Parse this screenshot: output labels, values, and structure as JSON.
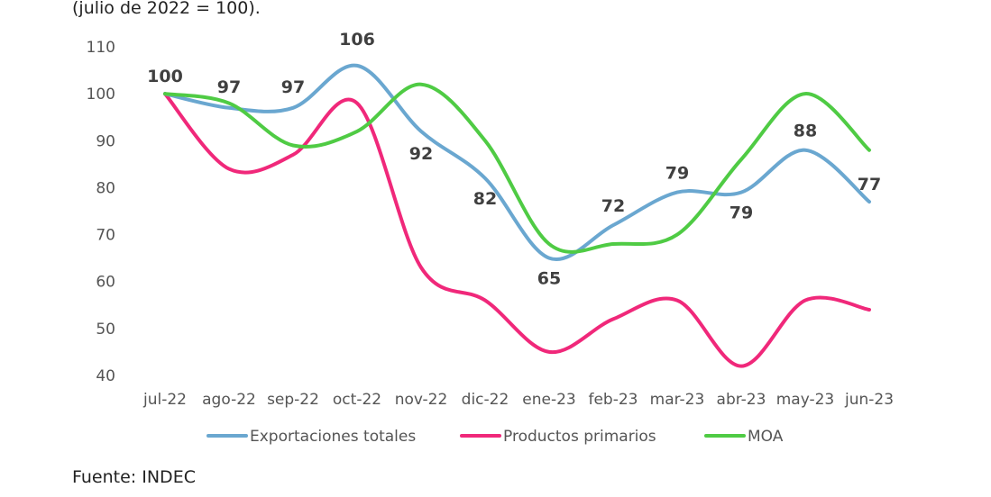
{
  "subtitle": "(julio de 2022 = 100).",
  "source": "Fuente: INDEC",
  "chart_data": {
    "type": "line",
    "title": "",
    "xlabel": "",
    "ylabel": "",
    "categories": [
      "jul-22",
      "ago-22",
      "sep-22",
      "oct-22",
      "nov-22",
      "dic-22",
      "ene-23",
      "feb-23",
      "mar-23",
      "abr-23",
      "may-23",
      "jun-23"
    ],
    "ylim": [
      40,
      110
    ],
    "yticks": [
      "110",
      "100",
      "90",
      "80",
      "70",
      "60",
      "50",
      "40"
    ],
    "grid": false,
    "legend_position": "bottom",
    "smooth": true,
    "series": [
      {
        "name": "Exportaciones totales",
        "color": "#6aa7d0",
        "values": [
          100,
          97,
          97,
          106,
          92,
          82,
          65,
          72,
          79,
          79,
          88,
          77
        ],
        "labels": [
          "100",
          "97",
          "97",
          "106",
          "92",
          "82",
          "65",
          "72",
          "79",
          "79",
          "88",
          "77"
        ]
      },
      {
        "name": "Productos primarios",
        "color": "#f0287a",
        "values": [
          100,
          84,
          87,
          98,
          63,
          56,
          45,
          52,
          56,
          42,
          56,
          54
        ]
      },
      {
        "name": "MOA",
        "color": "#4fcb44",
        "values": [
          100,
          98,
          89,
          92,
          102,
          90,
          68,
          68,
          70,
          86,
          100,
          88
        ]
      }
    ]
  }
}
